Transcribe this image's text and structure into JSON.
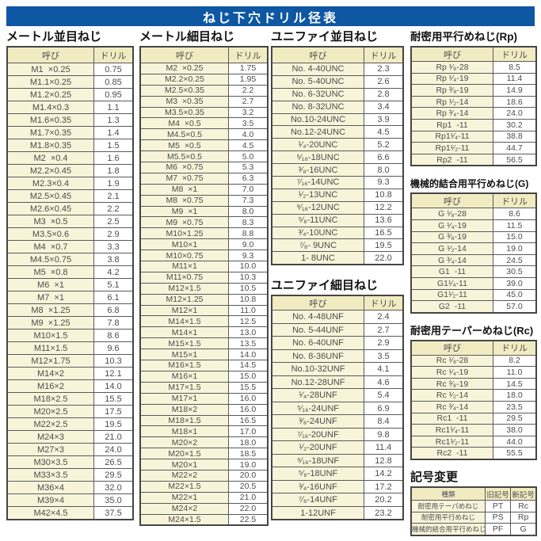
{
  "page": {
    "title": "ねじ下穴ドリル径表",
    "corner_mark": "--"
  },
  "sections": {
    "metric_coarse": {
      "title": "メートル並目ねじ",
      "headers": [
        "呼び",
        "ドリル"
      ],
      "rows": [
        [
          "M1  ×0.25",
          "0.75"
        ],
        [
          "M1.1×0.25",
          "0.85"
        ],
        [
          "M1.2×0.25",
          "0.95"
        ],
        [
          "M1.4×0.3",
          "1.1"
        ],
        [
          "M1.6×0.35",
          "1.3"
        ],
        [
          "M1.7×0.35",
          "1.4"
        ],
        [
          "M1.8×0.35",
          "1.5"
        ],
        [
          "M2  ×0.4",
          "1.6"
        ],
        [
          "M2.2×0.45",
          "1.8"
        ],
        [
          "M2.3×0.4",
          "1.9"
        ],
        [
          "M2.5×0.45",
          "2.1"
        ],
        [
          "M2.6×0.45",
          "2.2"
        ],
        [
          "M3  ×0.5",
          "2.5"
        ],
        [
          "M3.5×0.6",
          "2.9"
        ],
        [
          "M4  ×0.7",
          "3.3"
        ],
        [
          "M4.5×0.75",
          "3.8"
        ],
        [
          "M5  ×0.8",
          "4.2"
        ],
        [
          "M6  ×1",
          "5.1"
        ],
        [
          "M7  ×1",
          "6.1"
        ],
        [
          "M8  ×1.25",
          "6.8"
        ],
        [
          "M9  ×1.25",
          "7.8"
        ],
        [
          "M10×1.5",
          "8.6"
        ],
        [
          "M11×1.5",
          "9.6"
        ],
        [
          "M12×1.75",
          "10.3"
        ],
        [
          "M14×2",
          "12.1"
        ],
        [
          "M16×2",
          "14.0"
        ],
        [
          "M18×2.5",
          "15.5"
        ],
        [
          "M20×2.5",
          "17.5"
        ],
        [
          "M22×2.5",
          "19.5"
        ],
        [
          "M24×3",
          "21.0"
        ],
        [
          "M27×3",
          "24.0"
        ],
        [
          "M30×3.5",
          "26.5"
        ],
        [
          "M33×3.5",
          "29.5"
        ],
        [
          "M36×4",
          "32.0"
        ],
        [
          "M39×4",
          "35.0"
        ],
        [
          "M42×4.5",
          "37.5"
        ]
      ]
    },
    "metric_fine": {
      "title": "メートル細目ねじ",
      "headers": [
        "呼び",
        "ドリル"
      ],
      "rows": [
        [
          "M2  ×0.25",
          "1.75"
        ],
        [
          "M2.2×0.25",
          "1.95"
        ],
        [
          "M2.5×0.35",
          "2.2"
        ],
        [
          "M3  ×0.35",
          "2.7"
        ],
        [
          "M3.5×0.35",
          "3.2"
        ],
        [
          "M4  ×0.5",
          "3.5"
        ],
        [
          "M4.5×0.5",
          "4.0"
        ],
        [
          "M5  ×0.5",
          "4.5"
        ],
        [
          "M5.5×0.5",
          "5.0"
        ],
        [
          "M6  ×0.75",
          "5.3"
        ],
        [
          "M7  ×0.75",
          "6.3"
        ],
        [
          "M8  ×1",
          "7.0"
        ],
        [
          "M8  ×0.75",
          "7.3"
        ],
        [
          "M9  ×1",
          "8.0"
        ],
        [
          "M9  ×0.75",
          "8.3"
        ],
        [
          "M10×1.25",
          "8.8"
        ],
        [
          "M10×1",
          "9.0"
        ],
        [
          "M10×0.75",
          "9.3"
        ],
        [
          "M11×1",
          "10.0"
        ],
        [
          "M11×0.75",
          "10.3"
        ],
        [
          "M12×1.5",
          "10.5"
        ],
        [
          "M12×1.25",
          "10.8"
        ],
        [
          "M12×1",
          "11.0"
        ],
        [
          "M14×1.5",
          "12.5"
        ],
        [
          "M14×1",
          "13.0"
        ],
        [
          "M15×1.5",
          "13.5"
        ],
        [
          "M15×1",
          "14.0"
        ],
        [
          "M16×1.5",
          "14.5"
        ],
        [
          "M16×1",
          "15.0"
        ],
        [
          "M17×1.5",
          "15.5"
        ],
        [
          "M17×1",
          "16.0"
        ],
        [
          "M18×2",
          "16.0"
        ],
        [
          "M18×1.5",
          "16.5"
        ],
        [
          "M18×1",
          "17.0"
        ],
        [
          "M20×2",
          "18.0"
        ],
        [
          "M20×1.5",
          "18.5"
        ],
        [
          "M20×1",
          "19.0"
        ],
        [
          "M22×2",
          "20.0"
        ],
        [
          "M22×1.5",
          "20.5"
        ],
        [
          "M22×1",
          "21.0"
        ],
        [
          "M24×2",
          "22.0"
        ],
        [
          "M24×1.5",
          "22.5"
        ]
      ]
    },
    "unified_coarse": {
      "title": "ユニファイ並目ねじ",
      "headers": [
        "呼び",
        "ドリル"
      ],
      "rows": [
        [
          "No. 4-40UNC",
          "2.3"
        ],
        [
          "No. 5-40UNC",
          "2.6"
        ],
        [
          "No. 6-32UNC",
          "2.8"
        ],
        [
          "No. 8-32UNC",
          "3.4"
        ],
        [
          "No.10-24UNC",
          "3.9"
        ],
        [
          "No.12-24UNC",
          "4.5"
        ],
        [
          "¹⁄₄-20UNC",
          "5.2"
        ],
        [
          "⁵⁄₁₆-18UNC",
          "6.6"
        ],
        [
          "³⁄₈-16UNC",
          "8.0"
        ],
        [
          "⁷⁄₁₆-14UNC",
          "9.3"
        ],
        [
          "¹⁄₂-13UNC",
          "10.8"
        ],
        [
          "⁹⁄₁₆-12UNC",
          "12.2"
        ],
        [
          "⁵⁄₈-11UNC",
          "13.6"
        ],
        [
          "³⁄₄-10UNC",
          "16.5"
        ],
        [
          "⁷⁄₈- 9UNC",
          "19.5"
        ],
        [
          "1- 8UNC",
          "22.0"
        ]
      ]
    },
    "unified_fine": {
      "title": "ユニファイ細目ねじ",
      "headers": [
        "呼び",
        "ドリル"
      ],
      "rows": [
        [
          "No. 4-48UNF",
          "2.4"
        ],
        [
          "No. 5-44UNF",
          "2.7"
        ],
        [
          "No. 6-40UNF",
          "2.9"
        ],
        [
          "No. 8-36UNF",
          "3.5"
        ],
        [
          "No.10-32UNF",
          "4.1"
        ],
        [
          "No.12-28UNF",
          "4.6"
        ],
        [
          "¹⁄₄-28UNF",
          "5.4"
        ],
        [
          "⁵⁄₁₆-24UNF",
          "6.9"
        ],
        [
          "³⁄₈-24UNF",
          "8.4"
        ],
        [
          "⁷⁄₁₆-20UNF",
          "9.8"
        ],
        [
          "¹⁄₂-20UNF",
          "11.4"
        ],
        [
          "⁹⁄₁₆-18UNF",
          "12.8"
        ],
        [
          "⁵⁄₈-18UNF",
          "14.2"
        ],
        [
          "³⁄₄-16UNF",
          "17.2"
        ],
        [
          "⁷⁄₈-14UNF",
          "20.2"
        ],
        [
          "1-12UNF",
          "23.2"
        ]
      ]
    },
    "rp": {
      "title": "耐密用平行めねじ(Rp)",
      "headers": [
        "呼び",
        "ドリル"
      ],
      "rows": [
        [
          "Rp ¹⁄₈-28",
          "8.5"
        ],
        [
          "Rp ¹⁄₄-19",
          "11.4"
        ],
        [
          "Rp ³⁄₈-19",
          "14.9"
        ],
        [
          "Rp ¹⁄₂-14",
          "18.6"
        ],
        [
          "Rp ³⁄₄-14",
          "24.0"
        ],
        [
          "Rp1  -11",
          "30.2"
        ],
        [
          "Rp1¹⁄₄-11",
          "38.8"
        ],
        [
          "Rp1¹⁄₂-11",
          "44.7"
        ],
        [
          "Rp2  -11",
          "56.5"
        ]
      ]
    },
    "g": {
      "title": "機械的結合用平行めねじ(G)",
      "headers": [
        "呼び",
        "ドリル"
      ],
      "rows": [
        [
          "G ¹⁄₈-28",
          "8.6"
        ],
        [
          "G ¹⁄₄-19",
          "11.5"
        ],
        [
          "G ³⁄₈-19",
          "15.0"
        ],
        [
          "G ¹⁄₂-14",
          "19.0"
        ],
        [
          "G ³⁄₄-14",
          "24.5"
        ],
        [
          "G1  -11",
          "30.5"
        ],
        [
          "G1¹⁄₄-11",
          "39.0"
        ],
        [
          "G1¹⁄₂-11",
          "45.0"
        ],
        [
          "G2  -11",
          "57.0"
        ]
      ]
    },
    "rc": {
      "title": "耐密用テーパーめねじ(Rc)",
      "headers": [
        "呼び",
        "ドリル"
      ],
      "rows": [
        [
          "Rc ¹⁄₈-28",
          "8.2"
        ],
        [
          "Rc ¹⁄₄-19",
          "11.0"
        ],
        [
          "Rc ³⁄₈-19",
          "14.5"
        ],
        [
          "Rc ¹⁄₂-14",
          "18.0"
        ],
        [
          "Rc ³⁄₄-14",
          "23.5"
        ],
        [
          "Rc1  -11",
          "29.5"
        ],
        [
          "Rc1¹⁄₄-11",
          "38.0"
        ],
        [
          "Rc1¹⁄₂-11",
          "44.0"
        ],
        [
          "Rc2  -11",
          "55.5"
        ]
      ]
    },
    "symbol_change": {
      "title": "記号変更",
      "headers": [
        "種類",
        "旧記号",
        "新記号"
      ],
      "rows": [
        [
          "耐密用テーパめねじ",
          "PT",
          "Rc"
        ],
        [
          "耐密用平行めねじ",
          "PS",
          "Rp"
        ],
        [
          "機械的結合用平行めねじ",
          "PF",
          "G"
        ]
      ]
    }
  }
}
